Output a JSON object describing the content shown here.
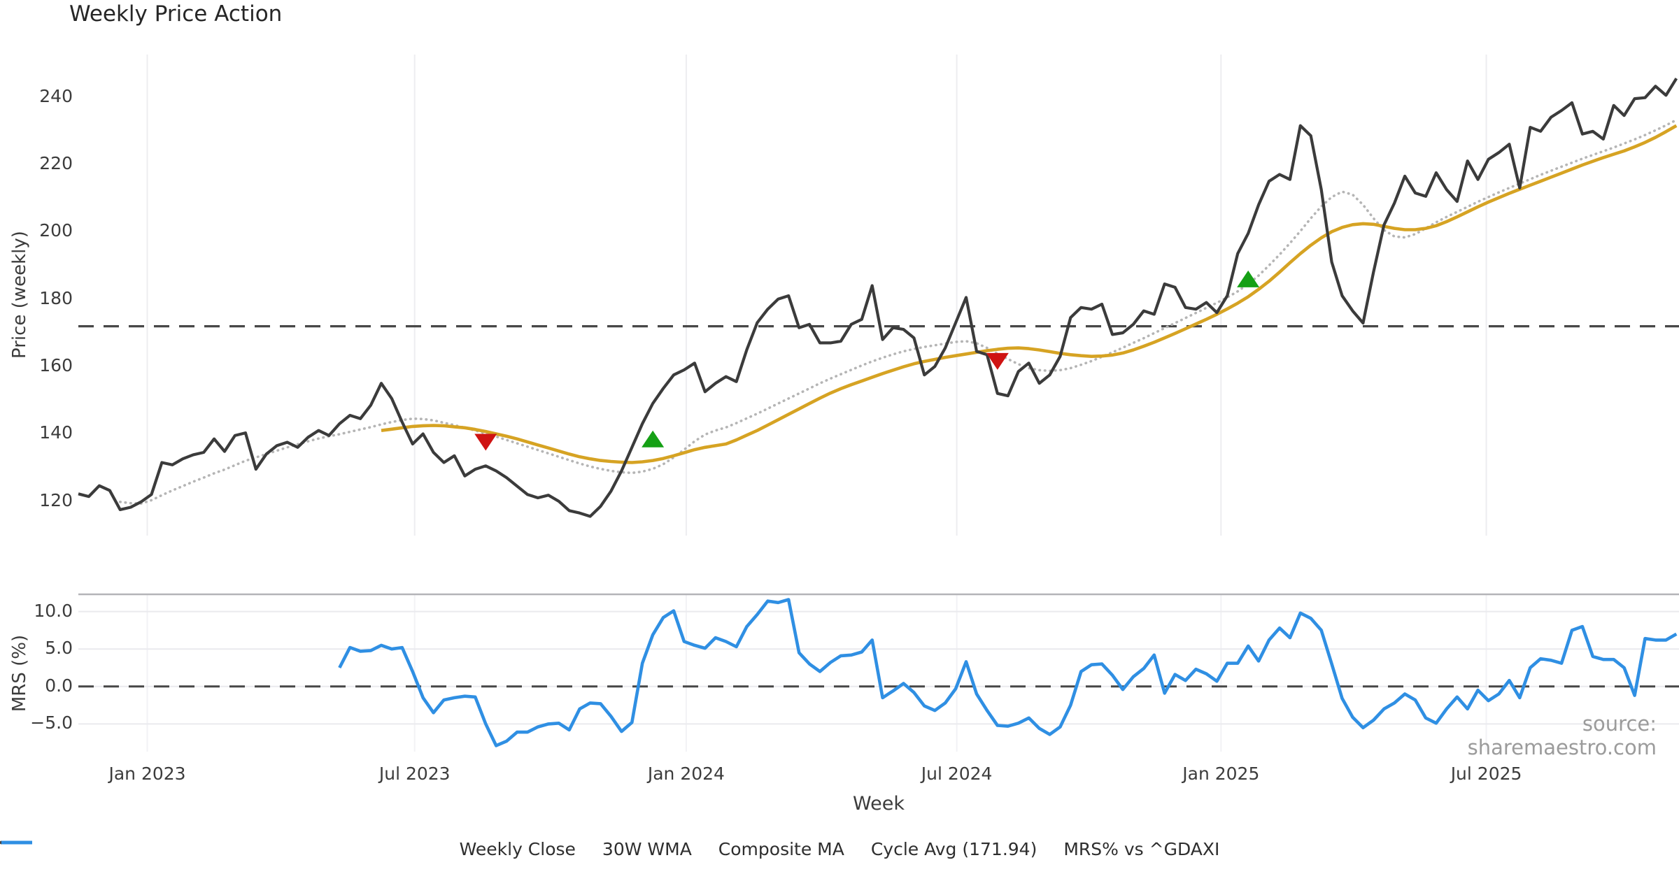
{
  "title": "Weekly Price Action",
  "xlabel": "Week",
  "watermark": "source: sharemaestro.com",
  "colors": {
    "close": "#3b3b3b",
    "wma": "#d6a323",
    "composite": "#b5b5b5",
    "cycle": "#474747",
    "mrs": "#2f8fe3",
    "sell": "#cf1312",
    "buy": "#15a015",
    "grid_top": "#ededf0",
    "grid_bottom": "#eaeaee",
    "spine": "#b4b4b8",
    "text": "#3c3c3c"
  },
  "price_panel": {
    "ylabel": "Price (weekly)",
    "yticks": [
      240,
      220,
      200,
      180,
      160,
      140,
      120
    ],
    "ylim": [
      109.8,
      252.6
    ]
  },
  "mrs_panel": {
    "ylabel": "MRS (%)",
    "ytick_labels": [
      "10.0",
      "5.0",
      "0.0",
      "−5.0"
    ],
    "ytick_values": [
      10,
      5,
      0,
      -5
    ],
    "ylim": [
      -8.7,
      12.3
    ]
  },
  "xticks": {
    "labels": [
      "Jan 2023",
      "Jul 2023",
      "Jan 2024",
      "Jul 2024",
      "Jan 2025",
      "Jul 2025"
    ],
    "weeks": [
      6.6,
      32.2,
      58.2,
      84.1,
      109.4,
      134.8
    ]
  },
  "legend": [
    {
      "label": "Weekly Close",
      "style": "solid",
      "color": "#3b3b3b"
    },
    {
      "label": "30W WMA",
      "style": "solid",
      "color": "#d6a323"
    },
    {
      "label": "Composite MA",
      "style": "dotted",
      "color": "#b5b5b5"
    },
    {
      "label": "Cycle Avg (171.94)",
      "style": "dashed",
      "color": "#474747"
    },
    {
      "label": "MRS% vs ^GDAXI",
      "style": "solid",
      "color": "#2f8fe3"
    }
  ],
  "chart_data": [
    {
      "type": "line",
      "panel": "price",
      "cycle_avg": 171.94,
      "series": [
        {
          "name": "Weekly Close",
          "color": "#3b3b3b",
          "start_week": 0,
          "values": [
            122.2,
            121.4,
            124.6,
            123.2,
            117.5,
            118.2,
            119.8,
            122.0,
            131.5,
            130.8,
            132.6,
            133.8,
            134.5,
            138.5,
            134.8,
            139.5,
            140.3,
            129.5,
            134.0,
            136.5,
            137.5,
            136.0,
            139.0,
            141.0,
            139.5,
            143.0,
            145.5,
            144.5,
            148.5,
            155.0,
            150.5,
            143.5,
            137.0,
            140.0,
            134.5,
            131.5,
            133.5,
            127.5,
            129.5,
            130.5,
            129.0,
            127.0,
            124.5,
            122.0,
            121.0,
            121.8,
            120.0,
            117.2,
            116.5,
            115.5,
            118.5,
            123.0,
            129.0,
            136.0,
            143.0,
            149.0,
            153.5,
            157.5,
            159.0,
            161.0,
            152.5,
            155.0,
            157.0,
            155.5,
            165.0,
            173.0,
            177.0,
            180.0,
            181.0,
            171.5,
            172.5,
            167.0,
            167.0,
            167.5,
            172.5,
            174.0,
            184.0,
            168.0,
            171.5,
            171.0,
            168.5,
            157.5,
            160.0,
            165.5,
            173.0,
            180.5,
            164.5,
            163.5,
            152.0,
            151.3,
            158.5,
            161.0,
            155.0,
            157.5,
            163.0,
            174.5,
            177.5,
            177.0,
            178.5,
            169.5,
            170.0,
            172.5,
            176.5,
            175.5,
            184.5,
            183.5,
            177.5,
            177.0,
            179.0,
            176.0,
            181.0,
            193.5,
            199.5,
            208.0,
            215.0,
            217.0,
            215.5,
            231.5,
            228.5,
            212.5,
            191.0,
            181.0,
            176.5,
            172.9,
            188.0,
            202.0,
            208.5,
            216.5,
            211.5,
            210.5,
            217.5,
            212.5,
            209.0,
            221.0,
            215.5,
            221.5,
            223.5,
            226.0,
            213.0,
            231.0,
            229.8,
            234.0,
            236.0,
            238.3,
            229.0,
            229.8,
            227.5,
            237.5,
            234.5,
            239.5,
            239.8,
            243.2,
            240.5,
            245.5
          ]
        },
        {
          "name": "30W WMA",
          "color": "#d6a323",
          "start_week": 29,
          "values": [
            141.0,
            141.4,
            141.8,
            142.2,
            142.4,
            142.5,
            142.4,
            142.1,
            141.8,
            141.3,
            140.7,
            140.0,
            139.3,
            138.5,
            137.6,
            136.7,
            135.8,
            134.9,
            134.0,
            133.2,
            132.6,
            132.1,
            131.8,
            131.6,
            131.5,
            131.7,
            132.1,
            132.7,
            133.5,
            134.4,
            135.3,
            136.0,
            136.5,
            137.0,
            138.2,
            139.6,
            141.0,
            142.6,
            144.2,
            145.8,
            147.4,
            149.0,
            150.6,
            152.1,
            153.4,
            154.6,
            155.7,
            156.8,
            157.9,
            158.9,
            159.9,
            160.8,
            161.5,
            162.1,
            162.7,
            163.2,
            163.7,
            164.2,
            164.7,
            165.1,
            165.4,
            165.5,
            165.3,
            164.9,
            164.4,
            163.9,
            163.5,
            163.2,
            163.0,
            163.1,
            163.4,
            164.0,
            164.9,
            166.0,
            167.2,
            168.5,
            169.8,
            171.2,
            172.6,
            174.0,
            175.5,
            177.1,
            178.8,
            180.7,
            182.9,
            185.3,
            188.0,
            190.8,
            193.5,
            196.0,
            198.2,
            200.0,
            201.3,
            202.1,
            202.4,
            202.2,
            201.6,
            201.0,
            200.6,
            200.6,
            201.0,
            201.8,
            203.0,
            204.4,
            205.9,
            207.4,
            208.8,
            210.1,
            211.4,
            212.6,
            213.8,
            215.0,
            216.2,
            217.4,
            218.6,
            219.8,
            220.9,
            222.0,
            223.0,
            224.0,
            225.2,
            226.5,
            228.0,
            229.7,
            231.5
          ]
        },
        {
          "name": "Composite MA",
          "color": "#b5b5b5",
          "start_week": 4,
          "values": [
            119.8,
            119.4,
            119.3,
            120.3,
            121.8,
            123.2,
            124.5,
            125.8,
            127.0,
            128.3,
            129.4,
            130.7,
            132.0,
            133.0,
            134.0,
            135.0,
            136.0,
            136.9,
            137.8,
            138.6,
            139.3,
            139.9,
            140.6,
            141.3,
            142.0,
            142.8,
            143.5,
            144.1,
            144.5,
            144.4,
            144.0,
            143.3,
            142.6,
            141.8,
            141.0,
            140.1,
            139.2,
            138.2,
            137.2,
            136.2,
            135.2,
            134.2,
            133.2,
            132.2,
            131.2,
            130.3,
            129.6,
            129.0,
            128.6,
            128.4,
            128.8,
            129.6,
            131.0,
            133.0,
            135.3,
            137.8,
            139.8,
            141.0,
            141.9,
            143.2,
            144.6,
            146.0,
            147.5,
            149.0,
            150.5,
            152.0,
            153.5,
            155.0,
            156.4,
            157.7,
            159.0,
            160.3,
            161.5,
            162.6,
            163.6,
            164.5,
            165.2,
            165.8,
            166.3,
            166.8,
            167.3,
            167.5,
            166.9,
            165.5,
            163.8,
            162.2,
            160.7,
            159.5,
            158.9,
            158.7,
            158.9,
            159.5,
            160.5,
            161.6,
            162.9,
            164.2,
            165.6,
            167.0,
            168.4,
            169.9,
            171.4,
            172.9,
            174.4,
            175.9,
            177.4,
            178.9,
            180.5,
            182.3,
            184.5,
            187.0,
            190.0,
            193.2,
            196.6,
            200.2,
            204.0,
            207.5,
            210.3,
            211.9,
            211.0,
            208.0,
            204.0,
            200.5,
            198.6,
            198.3,
            199.3,
            201.0,
            202.8,
            204.4,
            205.9,
            207.4,
            208.9,
            210.3,
            211.7,
            213.0,
            214.3,
            215.6,
            216.9,
            218.1,
            219.3,
            220.5,
            221.7,
            222.8,
            223.9,
            225.0,
            226.2,
            227.4,
            228.7,
            230.1,
            231.6,
            233.2
          ]
        }
      ],
      "markers": [
        {
          "kind": "sell",
          "shape": "triangle-down",
          "week": 39,
          "value": 137.5
        },
        {
          "kind": "buy",
          "shape": "triangle-up",
          "week": 55,
          "value": 138.5
        },
        {
          "kind": "sell",
          "shape": "triangle-down",
          "week": 88,
          "value": 161.5
        },
        {
          "kind": "buy",
          "shape": "triangle-up",
          "week": 112,
          "value": 186.0
        }
      ]
    },
    {
      "type": "line",
      "panel": "mrs",
      "zero_line": 0.0,
      "series": [
        {
          "name": "MRS% vs ^GDAXI",
          "color": "#2f8fe3",
          "start_week": 25,
          "values": [
            2.5,
            5.2,
            4.7,
            4.8,
            5.5,
            5.0,
            5.2,
            2.0,
            -1.5,
            -3.5,
            -1.8,
            -1.5,
            -1.3,
            -1.4,
            -5.0,
            -7.9,
            -7.3,
            -6.1,
            -6.1,
            -5.4,
            -5.0,
            -4.9,
            -5.8,
            -3.0,
            -2.2,
            -2.3,
            -4.0,
            -6.0,
            -4.8,
            3.1,
            6.9,
            9.2,
            10.1,
            6.0,
            5.5,
            5.1,
            6.5,
            6.0,
            5.3,
            8.0,
            9.6,
            11.4,
            11.2,
            11.6,
            4.5,
            3.0,
            2.0,
            3.2,
            4.1,
            4.2,
            4.6,
            6.2,
            -1.5,
            -0.6,
            0.4,
            -0.8,
            -2.6,
            -3.2,
            -2.2,
            -0.3,
            3.3,
            -1.0,
            -3.2,
            -5.2,
            -5.3,
            -4.9,
            -4.2,
            -5.6,
            -6.4,
            -5.4,
            -2.5,
            2.0,
            2.9,
            3.0,
            1.5,
            -0.4,
            1.3,
            2.4,
            4.2,
            -0.9,
            1.6,
            0.8,
            2.3,
            1.7,
            0.7,
            3.1,
            3.1,
            5.4,
            3.4,
            6.2,
            7.8,
            6.5,
            9.8,
            9.1,
            7.5,
            3.0,
            -1.6,
            -4.1,
            -5.5,
            -4.5,
            -3.0,
            -2.2,
            -1.0,
            -1.8,
            -4.2,
            -4.9,
            -3.0,
            -1.4,
            -3.0,
            -0.5,
            -1.9,
            -1.0,
            0.8,
            -1.5,
            2.5,
            3.7,
            3.5,
            3.1,
            7.5,
            8.0,
            4.0,
            3.6,
            3.6,
            2.5,
            -1.2,
            6.4,
            6.2,
            6.2,
            7.0
          ]
        }
      ]
    }
  ]
}
